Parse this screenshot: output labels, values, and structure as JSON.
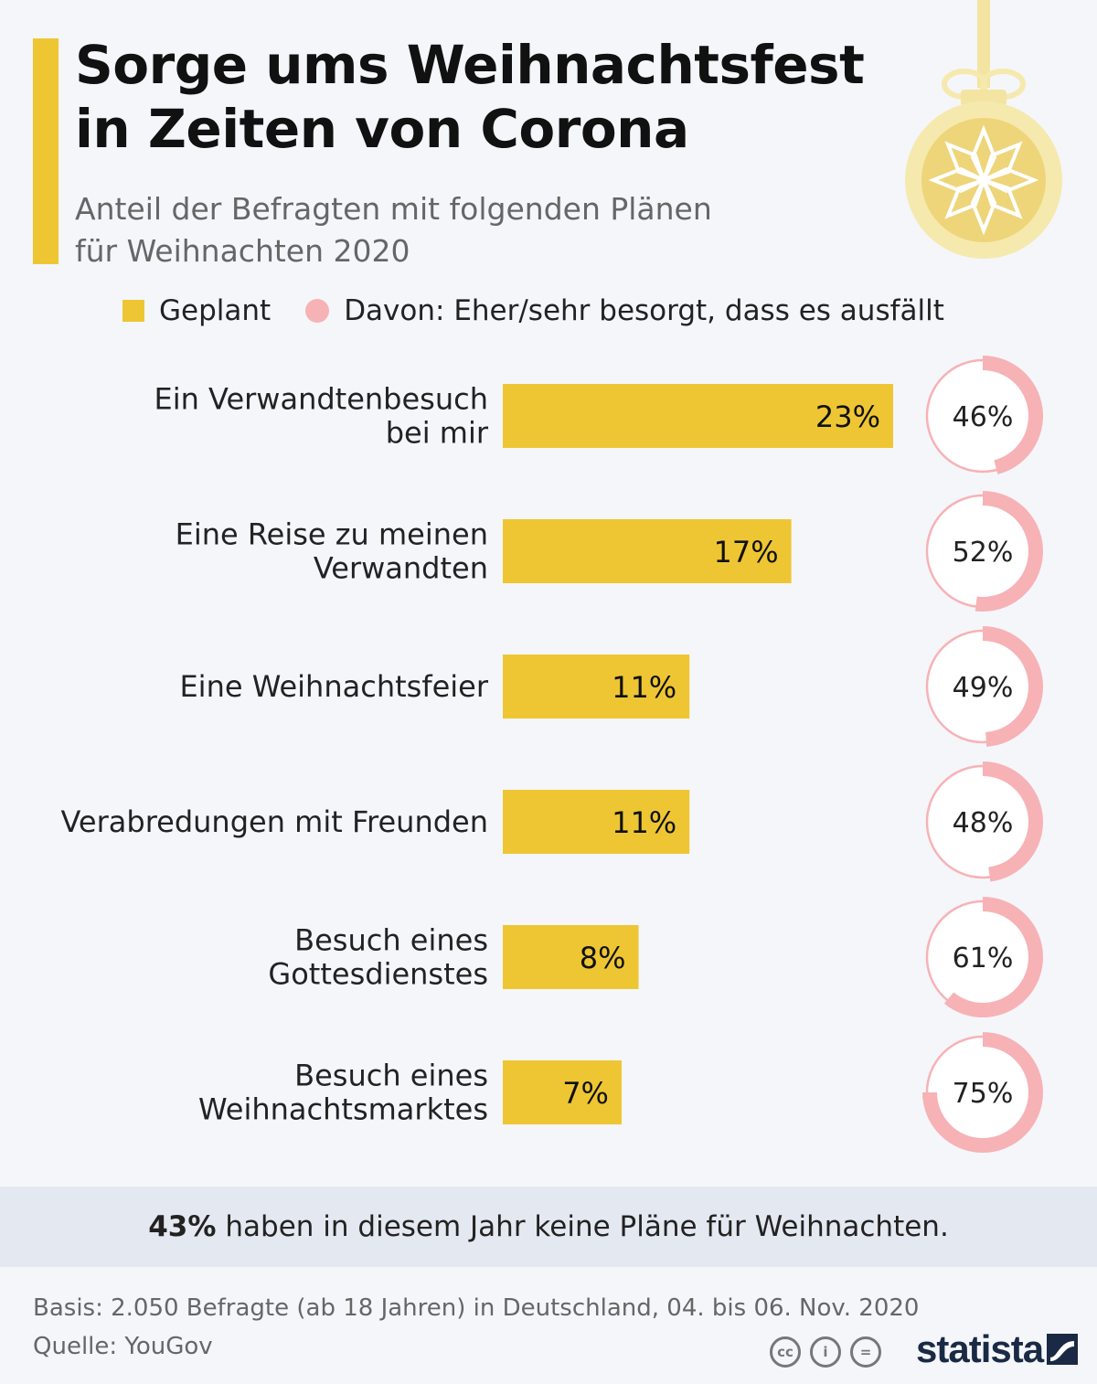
{
  "header": {
    "title_line1": "Sorge ums Weihnachtsfest",
    "title_line2": "in Zeiten von Corona",
    "subtitle_line1": "Anteil der Befragten mit folgenden Plänen",
    "subtitle_line2": "für Weihnachten 2020"
  },
  "legend": {
    "planned": "Geplant",
    "worried": "Davon: Eher/sehr besorgt, dass es ausfällt"
  },
  "colors": {
    "bar": "#eec633",
    "donut": "#f7b2b6",
    "donut_track": "#ffffff"
  },
  "chart_data": {
    "type": "bar",
    "orientation": "horizontal",
    "title": "Sorge ums Weihnachtsfest in Zeiten von Corona",
    "xlabel": "",
    "ylabel": "",
    "xlim": [
      0,
      23
    ],
    "categories": [
      [
        "Ein Verwandtenbesuch",
        "bei mir"
      ],
      [
        "Eine Reise zu meinen",
        "Verwandten"
      ],
      [
        "Eine Weihnachtsfeier"
      ],
      [
        "Verabredungen mit Freunden"
      ],
      [
        "Besuch eines",
        "Gottesdienstes"
      ],
      [
        "Besuch eines",
        "Weihnachtsmarktes"
      ]
    ],
    "series": [
      {
        "name": "Geplant",
        "values": [
          23,
          17,
          11,
          11,
          8,
          7
        ],
        "labels": [
          "23%",
          "17%",
          "11%",
          "11%",
          "8%",
          "7%"
        ]
      },
      {
        "name": "Davon: Eher/sehr besorgt, dass es ausfällt",
        "values": [
          46,
          52,
          49,
          48,
          61,
          75
        ],
        "labels": [
          "46%",
          "52%",
          "49%",
          "48%",
          "61%",
          "75%"
        ]
      }
    ]
  },
  "summary": {
    "bold": "43%",
    "text": "haben in diesem Jahr keine Pläne für Weihnachten."
  },
  "source": {
    "basis": "Basis: 2.050 Befragte (ab 18 Jahren) in Deutschland, 04. bis 06. Nov. 2020",
    "quelle": "Quelle: YouGov"
  },
  "brand": {
    "logo_text": "statista",
    "license_icons": [
      "cc",
      "i",
      "="
    ]
  }
}
